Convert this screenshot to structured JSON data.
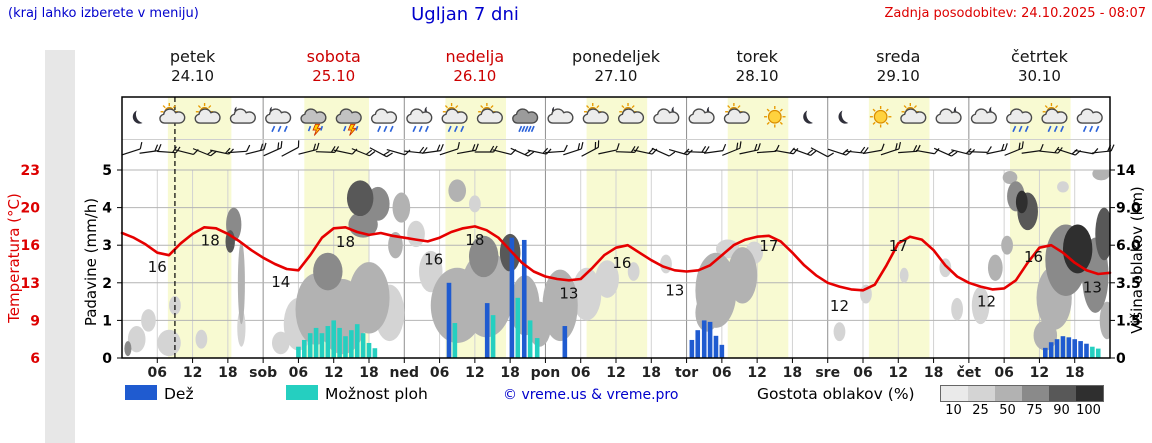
{
  "header": {
    "hint": "(kraj lahko izberete v meniju)",
    "title": "Ugljan 7 dni",
    "updated": "Zadnja posodobitev: 24.10.2025 - 08:07"
  },
  "days": [
    {
      "name": "petek",
      "date": "24.10",
      "red": false
    },
    {
      "name": "sobota",
      "date": "25.10",
      "red": true
    },
    {
      "name": "nedelja",
      "date": "26.10",
      "red": true
    },
    {
      "name": "ponedeljek",
      "date": "27.10",
      "red": false
    },
    {
      "name": "torek",
      "date": "28.10",
      "red": false
    },
    {
      "name": "sreda",
      "date": "29.10",
      "red": false
    },
    {
      "name": "četrtek",
      "date": "30.10",
      "red": false
    }
  ],
  "axes": {
    "temp_label": "Temperatura (°C)",
    "temp_ticks": [
      "23",
      "20",
      "16",
      "13",
      "9",
      "6"
    ],
    "precip_label": "Padavine (mm/h)",
    "precip_ticks": [
      "5",
      "4",
      "3",
      "2",
      "1",
      "0"
    ],
    "cloud_label": "Višina oblakov (km)",
    "cloud_ticks": [
      "14",
      "9.0",
      "6.0",
      "3.5",
      "1.5",
      "0"
    ]
  },
  "legend": {
    "rain": "Dež",
    "showers": "Možnost ploh",
    "credit": "© vreme.us & vreme.pro",
    "clouds": "Gostota oblakov (%)",
    "cloud_scale": [
      "10",
      "25",
      "50",
      "75",
      "90",
      "100"
    ]
  },
  "colors": {
    "blue_text": "#0000cc",
    "red_text": "#dd0000",
    "temp_line": "#e60000",
    "rain": "#1f5bd0",
    "showers": "#25cfc0",
    "daylight": "#f8fad2",
    "day_label_weekend": "#cc0000",
    "day_label": "#161616"
  },
  "chart_data": {
    "type": "meteogram",
    "x_hours_total": 168,
    "now_line_h": 9,
    "daylight": [
      [
        7.8,
        18.6
      ],
      [
        31,
        42
      ],
      [
        55,
        65.3
      ],
      [
        79,
        89.3
      ],
      [
        103,
        113.3
      ],
      [
        127,
        137.3
      ],
      [
        151,
        161.3
      ]
    ],
    "xticks": [
      [
        6,
        "06"
      ],
      [
        12,
        "12"
      ],
      [
        18,
        "18"
      ],
      [
        24,
        "sob"
      ],
      [
        30,
        "06"
      ],
      [
        36,
        "12"
      ],
      [
        42,
        "18"
      ],
      [
        48,
        "ned"
      ],
      [
        54,
        "06"
      ],
      [
        60,
        "12"
      ],
      [
        66,
        "18"
      ],
      [
        72,
        "pon"
      ],
      [
        78,
        "06"
      ],
      [
        84,
        "12"
      ],
      [
        90,
        "18"
      ],
      [
        96,
        "tor"
      ],
      [
        102,
        "06"
      ],
      [
        108,
        "12"
      ],
      [
        114,
        "18"
      ],
      [
        120,
        "sre"
      ],
      [
        126,
        "06"
      ],
      [
        132,
        "12"
      ],
      [
        138,
        "18"
      ],
      [
        144,
        "čet"
      ],
      [
        150,
        "06"
      ],
      [
        156,
        "12"
      ],
      [
        162,
        "18"
      ]
    ],
    "temp": {
      "unit": "°C",
      "scale_ticks": [
        6,
        9,
        13,
        16,
        20,
        23
      ],
      "points": [
        [
          0,
          17.3
        ],
        [
          2,
          16.8
        ],
        [
          4,
          16.1
        ],
        [
          6,
          15.4
        ],
        [
          8,
          15.2
        ],
        [
          10,
          16.2
        ],
        [
          12,
          17.2
        ],
        [
          14,
          17.9
        ],
        [
          16,
          17.8
        ],
        [
          18,
          17.2
        ],
        [
          20,
          16.4
        ],
        [
          22,
          15.6
        ],
        [
          24,
          15.0
        ],
        [
          26,
          14.5
        ],
        [
          28,
          14.1
        ],
        [
          30,
          14.0
        ],
        [
          32,
          15.2
        ],
        [
          34,
          16.8
        ],
        [
          36,
          17.8
        ],
        [
          38,
          17.9
        ],
        [
          40,
          17.4
        ],
        [
          42,
          17.1
        ],
        [
          44,
          17.3
        ],
        [
          46,
          17.0
        ],
        [
          48,
          16.8
        ],
        [
          50,
          16.6
        ],
        [
          52,
          16.4
        ],
        [
          54,
          16.8
        ],
        [
          56,
          17.4
        ],
        [
          58,
          17.8
        ],
        [
          60,
          18.0
        ],
        [
          62,
          17.6
        ],
        [
          64,
          16.8
        ],
        [
          66,
          15.6
        ],
        [
          68,
          14.6
        ],
        [
          70,
          13.9
        ],
        [
          72,
          13.5
        ],
        [
          74,
          13.3
        ],
        [
          76,
          13.2
        ],
        [
          78,
          13.3
        ],
        [
          80,
          14.2
        ],
        [
          82,
          15.2
        ],
        [
          84,
          15.8
        ],
        [
          86,
          16.0
        ],
        [
          88,
          15.4
        ],
        [
          90,
          14.8
        ],
        [
          92,
          14.3
        ],
        [
          94,
          14.0
        ],
        [
          96,
          13.9
        ],
        [
          98,
          14.0
        ],
        [
          100,
          14.4
        ],
        [
          102,
          15.2
        ],
        [
          104,
          16.0
        ],
        [
          106,
          16.6
        ],
        [
          108,
          16.9
        ],
        [
          110,
          17.0
        ],
        [
          112,
          16.4
        ],
        [
          114,
          15.4
        ],
        [
          116,
          14.4
        ],
        [
          118,
          13.6
        ],
        [
          120,
          13.0
        ],
        [
          122,
          12.6
        ],
        [
          124,
          12.3
        ],
        [
          126,
          12.2
        ],
        [
          128,
          12.8
        ],
        [
          130,
          14.4
        ],
        [
          132,
          16.2
        ],
        [
          134,
          16.9
        ],
        [
          136,
          16.6
        ],
        [
          138,
          15.6
        ],
        [
          140,
          14.4
        ],
        [
          142,
          13.5
        ],
        [
          144,
          13.0
        ],
        [
          146,
          12.6
        ],
        [
          148,
          12.3
        ],
        [
          150,
          12.4
        ],
        [
          152,
          13.2
        ],
        [
          154,
          14.6
        ],
        [
          156,
          15.8
        ],
        [
          158,
          16.0
        ],
        [
          160,
          15.4
        ],
        [
          162,
          14.6
        ],
        [
          164,
          14.0
        ],
        [
          166,
          13.7
        ],
        [
          168,
          13.8
        ]
      ],
      "labels": [
        [
          6,
          "16",
          2.42
        ],
        [
          15,
          "18",
          3.12
        ],
        [
          27,
          "14",
          2.02
        ],
        [
          38,
          "18",
          3.08
        ],
        [
          53,
          "16",
          2.62
        ],
        [
          60,
          "18",
          3.14
        ],
        [
          76,
          "13",
          1.72
        ],
        [
          85,
          "16",
          2.52
        ],
        [
          94,
          "13",
          1.8
        ],
        [
          110,
          "17",
          2.98
        ],
        [
          122,
          "12",
          1.38
        ],
        [
          132,
          "17",
          2.98
        ],
        [
          147,
          "12",
          1.5
        ],
        [
          155,
          "16",
          2.68
        ],
        [
          165,
          "13",
          1.88
        ]
      ]
    },
    "precip": {
      "unit": "mm/h",
      "scale_ticks": [
        0,
        1,
        2,
        3,
        4,
        5
      ],
      "rain_bars": [
        [
          55.6,
          2.0
        ],
        [
          62.1,
          1.46
        ],
        [
          66.3,
          3.2
        ],
        [
          68.4,
          3.14
        ],
        [
          75.3,
          0.85
        ],
        [
          96.9,
          0.48
        ],
        [
          97.9,
          0.74
        ],
        [
          99,
          1.0
        ],
        [
          100,
          0.96
        ],
        [
          101,
          0.59
        ],
        [
          102,
          0.35
        ],
        [
          157,
          0.27
        ],
        [
          158,
          0.42
        ],
        [
          159,
          0.5
        ],
        [
          160,
          0.58
        ],
        [
          161,
          0.55
        ],
        [
          162,
          0.5
        ],
        [
          163,
          0.45
        ],
        [
          164,
          0.38
        ]
      ],
      "shower_bars": [
        [
          30,
          0.3
        ],
        [
          31,
          0.48
        ],
        [
          32,
          0.66
        ],
        [
          33,
          0.8
        ],
        [
          34,
          0.66
        ],
        [
          35,
          0.85
        ],
        [
          36,
          1.0
        ],
        [
          37,
          0.8
        ],
        [
          38,
          0.58
        ],
        [
          39,
          0.74
        ],
        [
          40,
          0.9
        ],
        [
          41,
          0.66
        ],
        [
          42,
          0.4
        ],
        [
          43,
          0.26
        ],
        [
          56.6,
          0.93
        ],
        [
          63.1,
          1.14
        ],
        [
          67.3,
          1.6
        ],
        [
          69.4,
          1.0
        ],
        [
          70.6,
          0.53
        ],
        [
          165,
          0.3
        ],
        [
          166,
          0.25
        ]
      ]
    },
    "clouds": {
      "unit": "%",
      "levels_km": [
        0,
        1.5,
        3.5,
        6,
        9,
        14
      ],
      "scale_order": [
        10,
        25,
        50,
        75,
        90,
        100
      ],
      "shades": {
        "10": "#eaeaea",
        "25": "#d4d4d4",
        "50": "#b2b2b2",
        "75": "#8a8a8a",
        "90": "#585858",
        "100": "#2f2f2f"
      },
      "blobs": [
        {
          "h": 1,
          "l": 0.25,
          "w": 1.2,
          "v": 0.4,
          "g": 75
        },
        {
          "h": 2.5,
          "l": 0.5,
          "w": 3,
          "v": 0.7,
          "g": 25
        },
        {
          "h": 4.5,
          "l": 1.0,
          "w": 2.5,
          "v": 0.6,
          "g": 25
        },
        {
          "h": 8,
          "l": 0.4,
          "w": 4,
          "v": 0.7,
          "g": 25
        },
        {
          "h": 9,
          "l": 1.4,
          "w": 2,
          "v": 0.5,
          "g": 25
        },
        {
          "h": 13.5,
          "l": 0.5,
          "w": 2,
          "v": 0.5,
          "g": 25
        },
        {
          "h": 19,
          "l": 3.55,
          "w": 2.6,
          "v": 0.9,
          "g": 75
        },
        {
          "h": 18.4,
          "l": 3.1,
          "w": 1.6,
          "v": 0.6,
          "g": 90
        },
        {
          "h": 20.3,
          "l": 2.0,
          "w": 1.2,
          "v": 2.2,
          "g": 50
        },
        {
          "h": 20.3,
          "l": 0.8,
          "w": 1.4,
          "v": 1.0,
          "g": 25
        },
        {
          "h": 27,
          "l": 0.4,
          "w": 3,
          "v": 0.6,
          "g": 25
        },
        {
          "h": 30,
          "l": 0.9,
          "w": 5,
          "v": 1.4,
          "g": 25
        },
        {
          "h": 33,
          "l": 1.3,
          "w": 7,
          "v": 1.9,
          "g": 50
        },
        {
          "h": 37.5,
          "l": 1.1,
          "w": 8,
          "v": 2.0,
          "g": 50
        },
        {
          "h": 35,
          "l": 2.3,
          "w": 5,
          "v": 1.0,
          "g": 75
        },
        {
          "h": 42,
          "l": 1.6,
          "w": 7,
          "v": 1.9,
          "g": 50
        },
        {
          "h": 45.5,
          "l": 1.2,
          "w": 5,
          "v": 1.5,
          "g": 25
        },
        {
          "h": 40.5,
          "l": 4.25,
          "w": 4.5,
          "v": 0.95,
          "g": 90
        },
        {
          "h": 43.5,
          "l": 4.1,
          "w": 4,
          "v": 0.9,
          "g": 75
        },
        {
          "h": 41,
          "l": 3.55,
          "w": 5,
          "v": 0.7,
          "g": 75
        },
        {
          "h": 46.5,
          "l": 3.0,
          "w": 2.5,
          "v": 0.7,
          "g": 50
        },
        {
          "h": 47.5,
          "l": 4.0,
          "w": 3,
          "v": 0.8,
          "g": 50
        },
        {
          "h": 50,
          "l": 3.3,
          "w": 3,
          "v": 0.7,
          "g": 25
        },
        {
          "h": 52.5,
          "l": 2.3,
          "w": 4,
          "v": 1.1,
          "g": 25
        },
        {
          "h": 57,
          "l": 1.4,
          "w": 9,
          "v": 2.0,
          "g": 50
        },
        {
          "h": 62,
          "l": 1.7,
          "w": 9,
          "v": 2.3,
          "g": 50
        },
        {
          "h": 61.5,
          "l": 2.7,
          "w": 5,
          "v": 1.1,
          "g": 75
        },
        {
          "h": 66,
          "l": 2.8,
          "w": 3.5,
          "v": 1.0,
          "g": 90
        },
        {
          "h": 57,
          "l": 4.45,
          "w": 3,
          "v": 0.6,
          "g": 50
        },
        {
          "h": 60,
          "l": 4.1,
          "w": 2,
          "v": 0.45,
          "g": 25
        },
        {
          "h": 68.5,
          "l": 1.4,
          "w": 5,
          "v": 1.6,
          "g": 50
        },
        {
          "h": 71,
          "l": 0.9,
          "w": 4,
          "v": 1.2,
          "g": 50
        },
        {
          "h": 74.5,
          "l": 1.4,
          "w": 6,
          "v": 1.9,
          "g": 50
        },
        {
          "h": 79,
          "l": 1.7,
          "w": 5,
          "v": 1.4,
          "g": 25
        },
        {
          "h": 82.5,
          "l": 2.1,
          "w": 4,
          "v": 1.0,
          "g": 25
        },
        {
          "h": 87,
          "l": 2.3,
          "w": 2,
          "v": 0.5,
          "g": 25
        },
        {
          "h": 92.5,
          "l": 2.5,
          "w": 2,
          "v": 0.5,
          "g": 25
        },
        {
          "h": 99.5,
          "l": 1.2,
          "w": 4,
          "v": 1.0,
          "g": 50
        },
        {
          "h": 101,
          "l": 1.8,
          "w": 7,
          "v": 2.0,
          "g": 50
        },
        {
          "h": 105.5,
          "l": 2.2,
          "w": 5,
          "v": 1.5,
          "g": 50
        },
        {
          "h": 103,
          "l": 2.9,
          "w": 4,
          "v": 0.5,
          "g": 25
        },
        {
          "h": 107.5,
          "l": 2.8,
          "w": 3,
          "v": 0.6,
          "g": 25
        },
        {
          "h": 122,
          "l": 0.7,
          "w": 2,
          "v": 0.5,
          "g": 25
        },
        {
          "h": 126.5,
          "l": 1.7,
          "w": 2,
          "v": 0.5,
          "g": 25
        },
        {
          "h": 133,
          "l": 2.2,
          "w": 1.5,
          "v": 0.4,
          "g": 25
        },
        {
          "h": 140,
          "l": 2.4,
          "w": 2,
          "v": 0.5,
          "g": 25
        },
        {
          "h": 142,
          "l": 1.3,
          "w": 2,
          "v": 0.6,
          "g": 25
        },
        {
          "h": 146,
          "l": 1.4,
          "w": 3,
          "v": 1.0,
          "g": 25
        },
        {
          "h": 148.5,
          "l": 2.4,
          "w": 2.5,
          "v": 0.7,
          "g": 50
        },
        {
          "h": 150.5,
          "l": 3.0,
          "w": 2,
          "v": 0.5,
          "g": 50
        },
        {
          "h": 152,
          "l": 4.3,
          "w": 3,
          "v": 0.8,
          "g": 75
        },
        {
          "h": 154,
          "l": 3.9,
          "w": 3.5,
          "v": 1.0,
          "g": 90
        },
        {
          "h": 153,
          "l": 4.15,
          "w": 2,
          "v": 0.6,
          "g": 100
        },
        {
          "h": 151,
          "l": 4.8,
          "w": 2.5,
          "v": 0.35,
          "g": 50
        },
        {
          "h": 157,
          "l": 0.6,
          "w": 4,
          "v": 0.8,
          "g": 50
        },
        {
          "h": 158.5,
          "l": 1.6,
          "w": 6,
          "v": 1.7,
          "g": 50
        },
        {
          "h": 160.5,
          "l": 2.6,
          "w": 7,
          "v": 1.9,
          "g": 75
        },
        {
          "h": 162.5,
          "l": 2.9,
          "w": 5,
          "v": 1.3,
          "g": 100
        },
        {
          "h": 165.5,
          "l": 2.2,
          "w": 4.5,
          "v": 2.0,
          "g": 75
        },
        {
          "h": 167,
          "l": 3.3,
          "w": 3,
          "v": 1.4,
          "g": 90
        },
        {
          "h": 167.5,
          "l": 1.0,
          "w": 2.5,
          "v": 1.0,
          "g": 50
        },
        {
          "h": 160,
          "l": 4.55,
          "w": 2,
          "v": 0.3,
          "g": 25
        },
        {
          "h": 166.5,
          "l": 4.9,
          "w": 3,
          "v": 0.35,
          "g": 50
        }
      ]
    },
    "icons": [
      "moon",
      "sun-cloud",
      "sun-cloud",
      "moon-cloud",
      "moon-cloud-rain",
      "storm",
      "storm",
      "cloud-rain",
      "cloud-rain-moon",
      "sun-cloud-rain",
      "sun-cloud",
      "cloud-heavy-rain",
      "moon-cloud",
      "sun-cloud",
      "sun-cloud",
      "cloud-moon",
      "cloud-moon",
      "sun-cloud",
      "sun",
      "moon",
      "moon",
      "sun",
      "sun-cloud",
      "cloud-moon",
      "cloud-moon",
      "cloud-rain",
      "sun-cloud-rain",
      "cloud-rain"
    ],
    "wind_angles": [
      -18,
      -8,
      4,
      14,
      22,
      12,
      -4,
      -14,
      -24,
      -28,
      -14,
      2,
      12,
      22,
      28,
      16,
      6,
      -8,
      -18,
      -10,
      0,
      14,
      24,
      12,
      -4,
      -18,
      -28,
      -12,
      2,
      12,
      24,
      16,
      2,
      -8,
      -22,
      -12,
      -4,
      10,
      20,
      28,
      18,
      6,
      -10,
      -18,
      -4,
      10,
      24,
      14,
      2,
      -12,
      -22,
      -8,
      6,
      18,
      10,
      -6
    ]
  }
}
